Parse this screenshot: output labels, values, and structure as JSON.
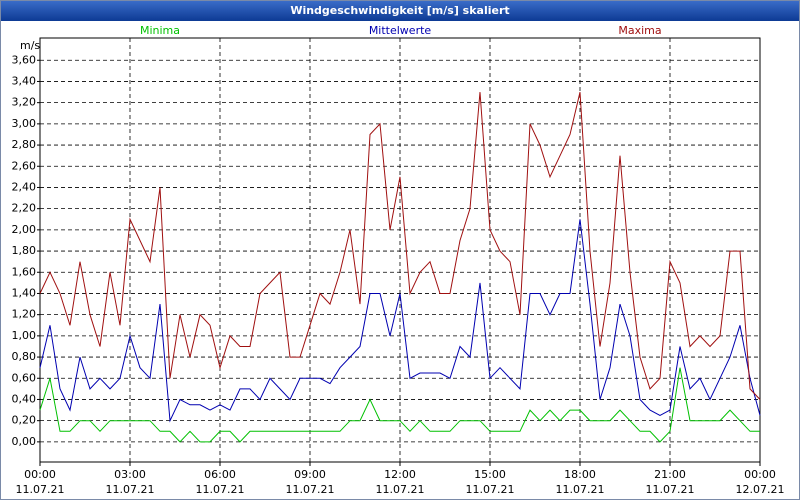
{
  "chart_data": {
    "type": "line",
    "title": "Windgeschwindigkeit [m/s] skaliert",
    "y_label": "m/s",
    "x": [
      0,
      20,
      40,
      60,
      80,
      100,
      120,
      140,
      160,
      180,
      200,
      220,
      240,
      260,
      280,
      300,
      320,
      340,
      360,
      380,
      400,
      420,
      440,
      460,
      480,
      500,
      520,
      540,
      560,
      580,
      600,
      620,
      640,
      660,
      680,
      700,
      720,
      740,
      760,
      780,
      800,
      820,
      840,
      860,
      880,
      900,
      920,
      940,
      960,
      980,
      1000,
      1020,
      1040,
      1060,
      1080,
      1100,
      1120,
      1140,
      1160,
      1180,
      1200,
      1220,
      1240,
      1260,
      1280,
      1300,
      1320,
      1340,
      1360,
      1380,
      1400,
      1420,
      1440
    ],
    "series": [
      {
        "name": "Minima",
        "color": "#00c000",
        "values": [
          0.3,
          0.6,
          0.1,
          0.1,
          0.2,
          0.2,
          0.1,
          0.2,
          0.2,
          0.2,
          0.2,
          0.2,
          0.1,
          0.1,
          0.0,
          0.1,
          0.0,
          0.0,
          0.1,
          0.1,
          0.0,
          0.1,
          0.1,
          0.1,
          0.1,
          0.1,
          0.1,
          0.1,
          0.1,
          0.1,
          0.1,
          0.2,
          0.2,
          0.4,
          0.2,
          0.2,
          0.2,
          0.1,
          0.2,
          0.1,
          0.1,
          0.1,
          0.2,
          0.2,
          0.2,
          0.1,
          0.1,
          0.1,
          0.1,
          0.3,
          0.2,
          0.3,
          0.2,
          0.3,
          0.3,
          0.2,
          0.2,
          0.2,
          0.3,
          0.2,
          0.1,
          0.1,
          0.0,
          0.1,
          0.7,
          0.2,
          0.2,
          0.2,
          0.2,
          0.3,
          0.2,
          0.1,
          0.1
        ]
      },
      {
        "name": "Mittelwerte",
        "color": "#0000b0",
        "values": [
          0.7,
          1.1,
          0.5,
          0.3,
          0.8,
          0.5,
          0.6,
          0.5,
          0.6,
          1.0,
          0.7,
          0.6,
          1.3,
          0.2,
          0.4,
          0.35,
          0.35,
          0.3,
          0.35,
          0.3,
          0.5,
          0.5,
          0.4,
          0.6,
          0.5,
          0.4,
          0.6,
          0.6,
          0.6,
          0.55,
          0.7,
          0.8,
          0.9,
          1.4,
          1.4,
          1.0,
          1.4,
          0.6,
          0.65,
          0.65,
          0.65,
          0.6,
          0.9,
          0.8,
          1.5,
          0.6,
          0.7,
          0.6,
          0.5,
          1.4,
          1.4,
          1.2,
          1.4,
          1.4,
          2.1,
          1.3,
          0.4,
          0.7,
          1.3,
          1.0,
          0.4,
          0.3,
          0.25,
          0.3,
          0.9,
          0.5,
          0.6,
          0.4,
          0.6,
          0.8,
          1.1,
          0.6,
          0.25
        ]
      },
      {
        "name": "Maxima",
        "color": "#a01010",
        "values": [
          1.4,
          1.6,
          1.4,
          1.1,
          1.7,
          1.2,
          0.9,
          1.6,
          1.1,
          2.1,
          1.9,
          1.7,
          2.4,
          0.6,
          1.2,
          0.8,
          1.2,
          1.1,
          0.7,
          1.0,
          0.9,
          0.9,
          1.4,
          1.5,
          1.6,
          0.8,
          0.8,
          1.1,
          1.4,
          1.3,
          1.6,
          2.0,
          1.3,
          2.9,
          3.0,
          2.0,
          2.5,
          1.4,
          1.6,
          1.7,
          1.4,
          1.4,
          1.9,
          2.2,
          3.3,
          2.0,
          1.8,
          1.7,
          1.2,
          3.0,
          2.8,
          2.5,
          2.7,
          2.9,
          3.3,
          1.8,
          0.9,
          1.5,
          2.7,
          1.6,
          0.8,
          0.5,
          0.6,
          1.7,
          1.5,
          0.9,
          1.0,
          0.9,
          1.0,
          1.8,
          1.8,
          0.5,
          0.4
        ]
      }
    ],
    "xlim": [
      0,
      1440
    ],
    "xticks": [
      {
        "value": 0,
        "label": "00:00",
        "date": "11.07.21"
      },
      {
        "value": 180,
        "label": "03:00",
        "date": "11.07.21"
      },
      {
        "value": 360,
        "label": "06:00",
        "date": "11.07.21"
      },
      {
        "value": 540,
        "label": "09:00",
        "date": "11.07.21"
      },
      {
        "value": 720,
        "label": "12:00",
        "date": "11.07.21"
      },
      {
        "value": 900,
        "label": "15:00",
        "date": "11.07.21"
      },
      {
        "value": 1080,
        "label": "18:00",
        "date": "11.07.21"
      },
      {
        "value": 1260,
        "label": "21:00",
        "date": "11.07.21"
      },
      {
        "value": 1440,
        "label": "00:00",
        "date": "12.07.21"
      }
    ],
    "ylim": [
      -0.19,
      3.81
    ],
    "yticks": [
      {
        "value": 0,
        "label": "0,00"
      },
      {
        "value": 0.2,
        "label": "0,20"
      },
      {
        "value": 0.4,
        "label": "0,40"
      },
      {
        "value": 0.6,
        "label": "0,60"
      },
      {
        "value": 0.8,
        "label": "0,80"
      },
      {
        "value": 1.0,
        "label": "1,00"
      },
      {
        "value": 1.2,
        "label": "1,20"
      },
      {
        "value": 1.4,
        "label": "1,40"
      },
      {
        "value": 1.6,
        "label": "1,60"
      },
      {
        "value": 1.8,
        "label": "1,80"
      },
      {
        "value": 2.0,
        "label": "2,00"
      },
      {
        "value": 2.2,
        "label": "2,20"
      },
      {
        "value": 2.4,
        "label": "2,40"
      },
      {
        "value": 2.6,
        "label": "2,60"
      },
      {
        "value": 2.8,
        "label": "2,80"
      },
      {
        "value": 3.0,
        "label": "3,00"
      },
      {
        "value": 3.2,
        "label": "3,20"
      },
      {
        "value": 3.4,
        "label": "3,40"
      },
      {
        "value": 3.6,
        "label": "3,60"
      }
    ],
    "grid": true
  }
}
